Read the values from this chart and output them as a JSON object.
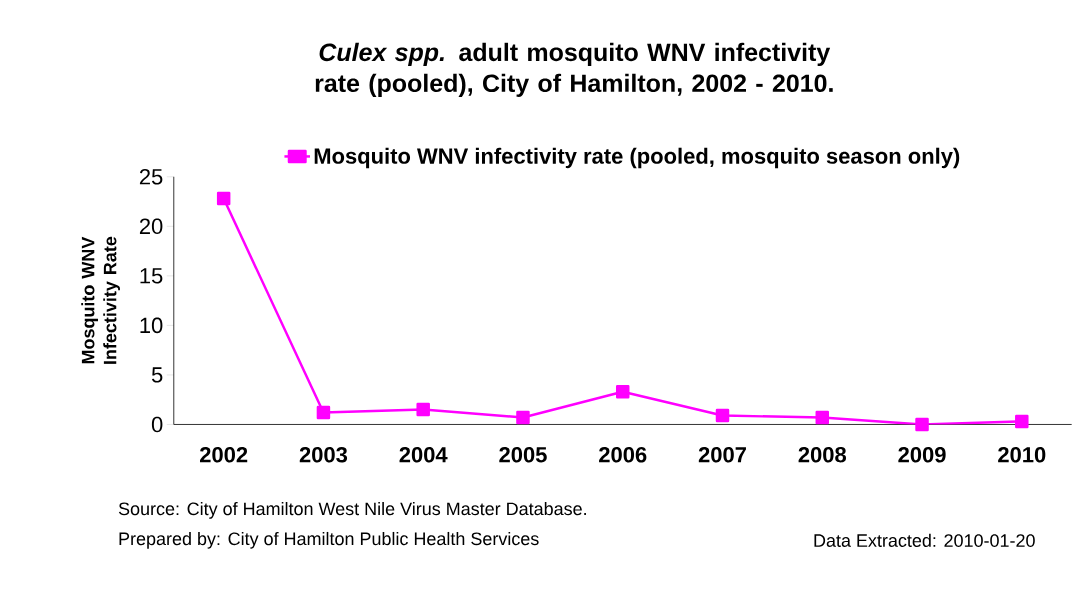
{
  "chart_data": {
    "type": "line",
    "title": "*Culex spp.* adult mosquito WNV infectivity rate (pooled), City of Hamilton, 2002 - 2010.",
    "ylabel": "Mosquito WNV Infectivity Rate",
    "categories": [
      "2002",
      "2003",
      "2004",
      "2005",
      "2006",
      "2007",
      "2008",
      "2009",
      "2010"
    ],
    "series": [
      {
        "name": "Mosquito WNV infectivity rate (pooled, mosquito season only)",
        "color": "#ff00ff",
        "values": [
          22.8,
          1.2,
          1.5,
          0.7,
          3.3,
          0.9,
          0.7,
          0,
          0.3
        ]
      }
    ],
    "ylim": [
      0,
      25
    ],
    "yticks": [
      0,
      5,
      10,
      15,
      20,
      25
    ],
    "marker": "square",
    "legend": "top",
    "annotations": [
      "Source: City of Hamilton West Nile Virus Master Database.",
      "Prepared by: City of Hamilton Public Health Services",
      "Data Extracted: 2010-01-20"
    ]
  }
}
